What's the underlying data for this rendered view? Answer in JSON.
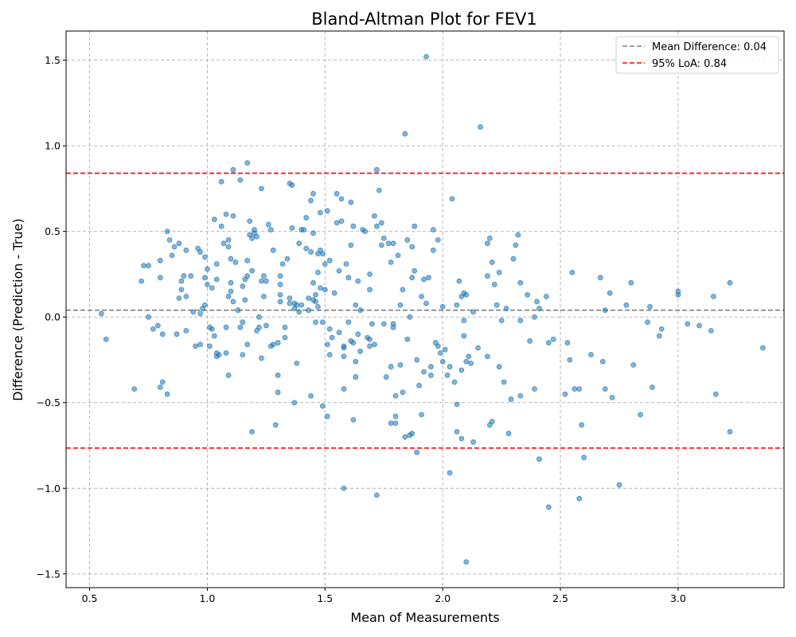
{
  "chart_data": {
    "type": "scatter",
    "title": "Bland-Altman Plot for FEV1",
    "xlabel": "Mean of Measurements",
    "ylabel": "Difference (Prediction - True)",
    "xlim": [
      0.4,
      3.45
    ],
    "ylim": [
      -1.58,
      1.67
    ],
    "x_ticks": [
      0.5,
      1.0,
      1.5,
      2.0,
      2.5,
      3.0
    ],
    "x_tick_labels": [
      "0.5",
      "1.0",
      "1.5",
      "2.0",
      "2.5",
      "3.0"
    ],
    "y_ticks": [
      -1.5,
      -1.0,
      -0.5,
      0.0,
      0.5,
      1.0,
      1.5
    ],
    "y_tick_labels": [
      "−1.5",
      "−1.0",
      "−0.5",
      "0.0",
      "0.5",
      "1.0",
      "1.5"
    ],
    "grid": true,
    "legend_position": "top-right",
    "reference_lines": [
      {
        "name": "Mean Difference: 0.04",
        "y": 0.04,
        "color": "#808080",
        "style": "dashed"
      },
      {
        "name": "95% LoA: 0.84",
        "y": 0.84,
        "color": "#ff0000",
        "style": "dashed"
      },
      {
        "name": "",
        "y": -0.765,
        "color": "#ff0000",
        "style": "dashed"
      }
    ],
    "point_color": "#1f77b4",
    "points": [
      [
        0.55,
        0.02
      ],
      [
        0.57,
        -0.13
      ],
      [
        0.69,
        -0.42
      ],
      [
        0.72,
        0.21
      ],
      [
        0.73,
        0.3
      ],
      [
        0.75,
        0.0
      ],
      [
        0.75,
        0.3
      ],
      [
        0.77,
        -0.07
      ],
      [
        0.79,
        -0.05
      ],
      [
        0.8,
        0.33
      ],
      [
        0.8,
        0.23
      ],
      [
        0.8,
        -0.41
      ],
      [
        0.81,
        -0.38
      ],
      [
        0.81,
        -0.1
      ],
      [
        0.83,
        -0.45
      ],
      [
        0.83,
        0.5
      ],
      [
        0.84,
        0.45
      ],
      [
        0.85,
        0.36
      ],
      [
        0.86,
        0.41
      ],
      [
        0.87,
        -0.1
      ],
      [
        0.88,
        0.43
      ],
      [
        0.88,
        0.11
      ],
      [
        0.89,
        0.16
      ],
      [
        0.89,
        0.21
      ],
      [
        0.9,
        0.24
      ],
      [
        0.91,
        0.39
      ],
      [
        0.91,
        -0.08
      ],
      [
        0.91,
        0.12
      ],
      [
        0.93,
        0.24
      ],
      [
        0.94,
        0.03
      ],
      [
        0.95,
        -0.17
      ],
      [
        0.96,
        0.4
      ],
      [
        0.97,
        -0.16
      ],
      [
        0.97,
        0.02
      ],
      [
        0.97,
        0.38
      ],
      [
        0.98,
        0.05
      ],
      [
        0.99,
        0.35
      ],
      [
        0.99,
        0.07
      ],
      [
        0.99,
        0.23
      ],
      [
        1.0,
        0.19
      ],
      [
        1.0,
        0.28
      ],
      [
        1.01,
        -0.17
      ],
      [
        1.01,
        -0.06
      ],
      [
        1.02,
        -0.07
      ],
      [
        1.02,
        0.17
      ],
      [
        1.03,
        -0.11
      ],
      [
        1.03,
        0.57
      ],
      [
        1.04,
        -0.21
      ],
      [
        1.04,
        -0.23
      ],
      [
        1.04,
        0.31
      ],
      [
        1.04,
        0.22
      ],
      [
        1.05,
        -0.22
      ],
      [
        1.06,
        0.79
      ],
      [
        1.06,
        0.53
      ],
      [
        1.07,
        0.43
      ],
      [
        1.08,
        -0.06
      ],
      [
        1.08,
        -0.21
      ],
      [
        1.08,
        0.6
      ],
      [
        1.09,
        0.41
      ],
      [
        1.09,
        -0.34
      ],
      [
        1.09,
        0.45
      ],
      [
        1.09,
        0.12
      ],
      [
        1.1,
        0.15
      ],
      [
        1.1,
        0.2
      ],
      [
        1.1,
        0.34
      ],
      [
        1.11,
        0.59
      ],
      [
        1.11,
        0.86
      ],
      [
        1.11,
        0.09
      ],
      [
        1.12,
        0.32
      ],
      [
        1.13,
        0.04
      ],
      [
        1.14,
        0.8
      ],
      [
        1.14,
        -0.06
      ],
      [
        1.15,
        -0.03
      ],
      [
        1.15,
        0.18
      ],
      [
        1.15,
        -0.22
      ],
      [
        1.16,
        0.22
      ],
      [
        1.16,
        0.1
      ],
      [
        1.17,
        0.9
      ],
      [
        1.17,
        0.33
      ],
      [
        1.17,
        0.24
      ],
      [
        1.17,
        -0.16
      ],
      [
        1.18,
        0.56
      ],
      [
        1.18,
        0.48
      ],
      [
        1.19,
        0.46
      ],
      [
        1.19,
        0.27
      ],
      [
        1.19,
        -0.67
      ],
      [
        1.2,
        0.49
      ],
      [
        1.2,
        0.51
      ],
      [
        1.21,
        0.47
      ],
      [
        1.21,
        -0.08
      ],
      [
        1.22,
        -0.06
      ],
      [
        1.22,
        0.0
      ],
      [
        1.23,
        0.21
      ],
      [
        1.23,
        -0.24
      ],
      [
        1.23,
        0.75
      ],
      [
        1.24,
        0.12
      ],
      [
        1.24,
        0.24
      ],
      [
        1.25,
        -0.05
      ],
      [
        1.25,
        0.21
      ],
      [
        1.26,
        0.54
      ],
      [
        1.27,
        0.51
      ],
      [
        1.27,
        -0.17
      ],
      [
        1.28,
        -0.16
      ],
      [
        1.28,
        0.39
      ],
      [
        1.29,
        -0.63
      ],
      [
        1.3,
        -0.15
      ],
      [
        1.3,
        -0.34
      ],
      [
        1.3,
        -0.44
      ],
      [
        1.31,
        0.09
      ],
      [
        1.31,
        0.19
      ],
      [
        1.31,
        0.24
      ],
      [
        1.31,
        0.13
      ],
      [
        1.32,
        0.31
      ],
      [
        1.33,
        -0.12
      ],
      [
        1.33,
        -0.06
      ],
      [
        1.34,
        0.34
      ],
      [
        1.35,
        0.78
      ],
      [
        1.35,
        0.11
      ],
      [
        1.35,
        0.08
      ],
      [
        1.36,
        0.77
      ],
      [
        1.36,
        0.52
      ],
      [
        1.37,
        0.08
      ],
      [
        1.37,
        -0.5
      ],
      [
        1.37,
        0.05
      ],
      [
        1.38,
        -0.27
      ],
      [
        1.38,
        0.07
      ],
      [
        1.39,
        0.43
      ],
      [
        1.39,
        0.03
      ],
      [
        1.4,
        0.51
      ],
      [
        1.4,
        0.07
      ],
      [
        1.41,
        0.51
      ],
      [
        1.42,
        0.58
      ],
      [
        1.42,
        0.4
      ],
      [
        1.43,
        0.04
      ],
      [
        1.43,
        0.11
      ],
      [
        1.44,
        0.68
      ],
      [
        1.44,
        -0.46
      ],
      [
        1.44,
        0.38
      ],
      [
        1.45,
        0.72
      ],
      [
        1.45,
        0.49
      ],
      [
        1.45,
        0.1
      ],
      [
        1.45,
        0.2
      ],
      [
        1.46,
        0.13
      ],
      [
        1.46,
        0.09
      ],
      [
        1.46,
        -0.03
      ],
      [
        1.47,
        0.06
      ],
      [
        1.47,
        0.37
      ],
      [
        1.47,
        0.26
      ],
      [
        1.48,
        0.61
      ],
      [
        1.48,
        0.39
      ],
      [
        1.48,
        0.17
      ],
      [
        1.49,
        -0.03
      ],
      [
        1.49,
        -0.52
      ],
      [
        1.49,
        0.37
      ],
      [
        1.5,
        0.16
      ],
      [
        1.5,
        0.31
      ],
      [
        1.51,
        0.62
      ],
      [
        1.51,
        -0.58
      ],
      [
        1.51,
        -0.16
      ],
      [
        1.52,
        -0.22
      ],
      [
        1.52,
        -0.07
      ],
      [
        1.52,
        0.33
      ],
      [
        1.53,
        -0.12
      ],
      [
        1.54,
        0.14
      ],
      [
        1.55,
        0.72
      ],
      [
        1.55,
        0.55
      ],
      [
        1.56,
        -0.09
      ],
      [
        1.56,
        0.27
      ],
      [
        1.57,
        0.56
      ],
      [
        1.57,
        0.69
      ],
      [
        1.58,
        -1.0
      ],
      [
        1.58,
        -0.17
      ],
      [
        1.58,
        -0.18
      ],
      [
        1.58,
        -0.23
      ],
      [
        1.58,
        -0.42
      ],
      [
        1.59,
        0.31
      ],
      [
        1.6,
        -0.03
      ],
      [
        1.6,
        0.23
      ],
      [
        1.61,
        0.67
      ],
      [
        1.61,
        0.42
      ],
      [
        1.61,
        -0.14
      ],
      [
        1.62,
        0.53
      ],
      [
        1.62,
        -0.15
      ],
      [
        1.62,
        -0.6
      ],
      [
        1.63,
        0.07
      ],
      [
        1.63,
        -0.26
      ],
      [
        1.63,
        -0.35
      ],
      [
        1.64,
        0.21
      ],
      [
        1.64,
        -0.1
      ],
      [
        1.65,
        0.04
      ],
      [
        1.65,
        -0.2
      ],
      [
        1.66,
        0.51
      ],
      [
        1.67,
        0.5
      ],
      [
        1.68,
        -0.12
      ],
      [
        1.69,
        -0.13
      ],
      [
        1.69,
        0.25
      ],
      [
        1.69,
        0.16
      ],
      [
        1.69,
        -0.17
      ],
      [
        1.7,
        -0.04
      ],
      [
        1.71,
        0.59
      ],
      [
        1.71,
        -0.16
      ],
      [
        1.72,
        0.86
      ],
      [
        1.72,
        0.53
      ],
      [
        1.72,
        -1.04
      ],
      [
        1.73,
        0.74
      ],
      [
        1.74,
        0.55
      ],
      [
        1.74,
        0.42
      ],
      [
        1.75,
        0.46
      ],
      [
        1.75,
        -0.04
      ],
      [
        1.76,
        -0.35
      ],
      [
        1.77,
        0.43
      ],
      [
        1.78,
        0.32
      ],
      [
        1.78,
        -0.29
      ],
      [
        1.78,
        -0.62
      ],
      [
        1.79,
        -0.04
      ],
      [
        1.79,
        0.43
      ],
      [
        1.79,
        -0.06
      ],
      [
        1.8,
        -0.46
      ],
      [
        1.8,
        -0.58
      ],
      [
        1.8,
        -0.62
      ],
      [
        1.81,
        0.36
      ],
      [
        1.82,
        -0.28
      ],
      [
        1.82,
        0.07
      ],
      [
        1.83,
        0.16
      ],
      [
        1.83,
        -0.44
      ],
      [
        1.84,
        1.07
      ],
      [
        1.84,
        -0.7
      ],
      [
        1.85,
        0.45
      ],
      [
        1.85,
        -0.13
      ],
      [
        1.86,
        -0.69
      ],
      [
        1.86,
        0.0
      ],
      [
        1.87,
        -0.68
      ],
      [
        1.87,
        0.41
      ],
      [
        1.87,
        0.23
      ],
      [
        1.88,
        0.53
      ],
      [
        1.88,
        0.27
      ],
      [
        1.89,
        -0.79
      ],
      [
        1.89,
        -0.25
      ],
      [
        1.9,
        -0.4
      ],
      [
        1.91,
        -0.57
      ],
      [
        1.91,
        0.12
      ],
      [
        1.92,
        -0.32
      ],
      [
        1.92,
        0.22
      ],
      [
        1.93,
        1.52
      ],
      [
        1.93,
        0.08
      ],
      [
        1.94,
        0.23
      ],
      [
        1.95,
        -0.29
      ],
      [
        1.95,
        -0.34
      ],
      [
        1.96,
        0.51
      ],
      [
        1.96,
        0.39
      ],
      [
        1.97,
        -0.15
      ],
      [
        1.98,
        0.45
      ],
      [
        1.98,
        -0.17
      ],
      [
        1.99,
        -0.21
      ],
      [
        2.0,
        0.06
      ],
      [
        2.0,
        -0.26
      ],
      [
        2.01,
        -0.19
      ],
      [
        2.02,
        -0.34
      ],
      [
        2.03,
        -0.29
      ],
      [
        2.03,
        -0.91
      ],
      [
        2.04,
        0.69
      ],
      [
        2.05,
        -0.38
      ],
      [
        2.06,
        -0.51
      ],
      [
        2.06,
        -0.67
      ],
      [
        2.06,
        0.07
      ],
      [
        2.07,
        0.21
      ],
      [
        2.08,
        -0.31
      ],
      [
        2.08,
        -0.71
      ],
      [
        2.08,
        0.12
      ],
      [
        2.09,
        -0.11
      ],
      [
        2.09,
        -0.02
      ],
      [
        2.09,
        0.14
      ],
      [
        2.1,
        0.13
      ],
      [
        2.1,
        -1.43
      ],
      [
        2.1,
        -0.26
      ],
      [
        2.11,
        -0.23
      ],
      [
        2.12,
        -0.27
      ],
      [
        2.13,
        0.03
      ],
      [
        2.13,
        -0.73
      ],
      [
        2.15,
        -0.18
      ],
      [
        2.16,
        1.11
      ],
      [
        2.19,
        -0.23
      ],
      [
        2.19,
        0.24
      ],
      [
        2.19,
        0.43
      ],
      [
        2.2,
        0.46
      ],
      [
        2.2,
        -0.63
      ],
      [
        2.21,
        0.32
      ],
      [
        2.21,
        -0.61
      ],
      [
        2.22,
        0.19
      ],
      [
        2.23,
        0.07
      ],
      [
        2.24,
        0.26
      ],
      [
        2.24,
        -0.29
      ],
      [
        2.25,
        -0.02
      ],
      [
        2.26,
        -0.38
      ],
      [
        2.27,
        0.05
      ],
      [
        2.28,
        -0.68
      ],
      [
        2.29,
        -0.48
      ],
      [
        2.3,
        0.34
      ],
      [
        2.31,
        0.42
      ],
      [
        2.32,
        0.48
      ],
      [
        2.33,
        -0.02
      ],
      [
        2.33,
        -0.46
      ],
      [
        2.33,
        0.2
      ],
      [
        2.36,
        0.13
      ],
      [
        2.37,
        -0.14
      ],
      [
        2.39,
        -0.42
      ],
      [
        2.39,
        0.0
      ],
      [
        2.4,
        0.09
      ],
      [
        2.41,
        0.05
      ],
      [
        2.41,
        -0.83
      ],
      [
        2.44,
        0.12
      ],
      [
        2.45,
        -1.11
      ],
      [
        2.45,
        -0.15
      ],
      [
        2.47,
        -0.13
      ],
      [
        2.52,
        -0.45
      ],
      [
        2.53,
        -0.15
      ],
      [
        2.54,
        -0.25
      ],
      [
        2.55,
        0.26
      ],
      [
        2.56,
        -0.42
      ],
      [
        2.58,
        -1.06
      ],
      [
        2.58,
        -0.42
      ],
      [
        2.59,
        -0.63
      ],
      [
        2.6,
        -0.82
      ],
      [
        2.63,
        -0.22
      ],
      [
        2.67,
        0.23
      ],
      [
        2.68,
        -0.26
      ],
      [
        2.69,
        0.04
      ],
      [
        2.69,
        -0.42
      ],
      [
        2.71,
        0.14
      ],
      [
        2.72,
        -0.47
      ],
      [
        2.75,
        -0.98
      ],
      [
        2.78,
        0.07
      ],
      [
        2.8,
        0.2
      ],
      [
        2.81,
        -0.28
      ],
      [
        2.84,
        -0.57
      ],
      [
        2.87,
        -0.03
      ],
      [
        2.88,
        0.06
      ],
      [
        2.89,
        -0.41
      ],
      [
        2.92,
        -0.11
      ],
      [
        2.93,
        -0.07
      ],
      [
        3.0,
        0.13
      ],
      [
        3.0,
        0.15
      ],
      [
        3.04,
        -0.04
      ],
      [
        3.09,
        -0.05
      ],
      [
        3.14,
        -0.08
      ],
      [
        3.15,
        0.12
      ],
      [
        3.16,
        -0.45
      ],
      [
        3.22,
        0.2
      ],
      [
        3.22,
        -0.67
      ],
      [
        3.36,
        -0.18
      ]
    ]
  }
}
